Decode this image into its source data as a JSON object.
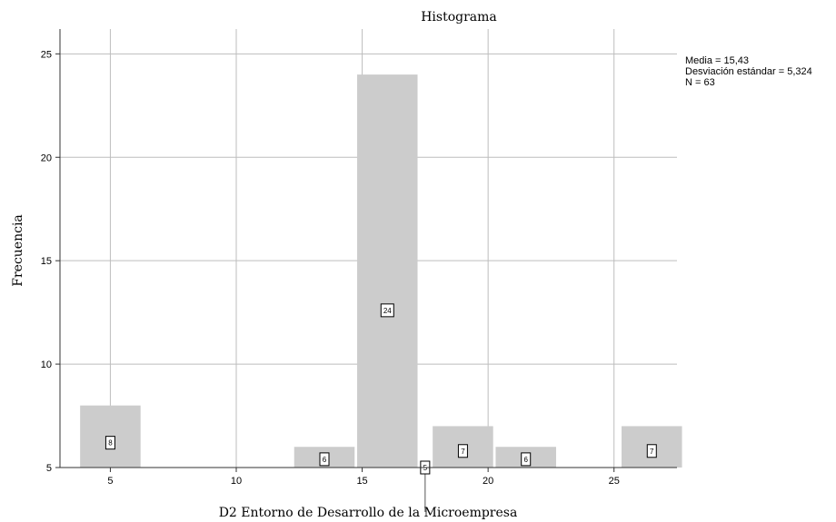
{
  "chart_data": {
    "type": "bar",
    "title": "Histograma",
    "xlabel": "D2 Entorno de Desarrollo de la Microempresa",
    "ylabel": "Frecuencia",
    "xlim": [
      3,
      27.5
    ],
    "ylim": [
      5,
      26.2
    ],
    "x_ticks": [
      5,
      10,
      15,
      20,
      25
    ],
    "y_ticks": [
      5,
      10,
      15,
      20,
      25
    ],
    "grid": true,
    "bar_color": "#cccccc",
    "bar_width": 2.4,
    "bars": [
      {
        "center": 5,
        "value": 8,
        "label": "8"
      },
      {
        "center": 13.5,
        "value": 6,
        "label": "6"
      },
      {
        "center": 16,
        "value": 24,
        "label": "24"
      },
      {
        "center": 17.5,
        "value": 5,
        "label": "5"
      },
      {
        "center": 19,
        "value": 7,
        "label": "7"
      },
      {
        "center": 21.5,
        "value": 6,
        "label": "6"
      },
      {
        "center": 26.5,
        "value": 7,
        "label": "7"
      }
    ],
    "stats": [
      "Media = 15,43",
      "Desviación estándar = 5,324",
      "N = 63"
    ]
  }
}
